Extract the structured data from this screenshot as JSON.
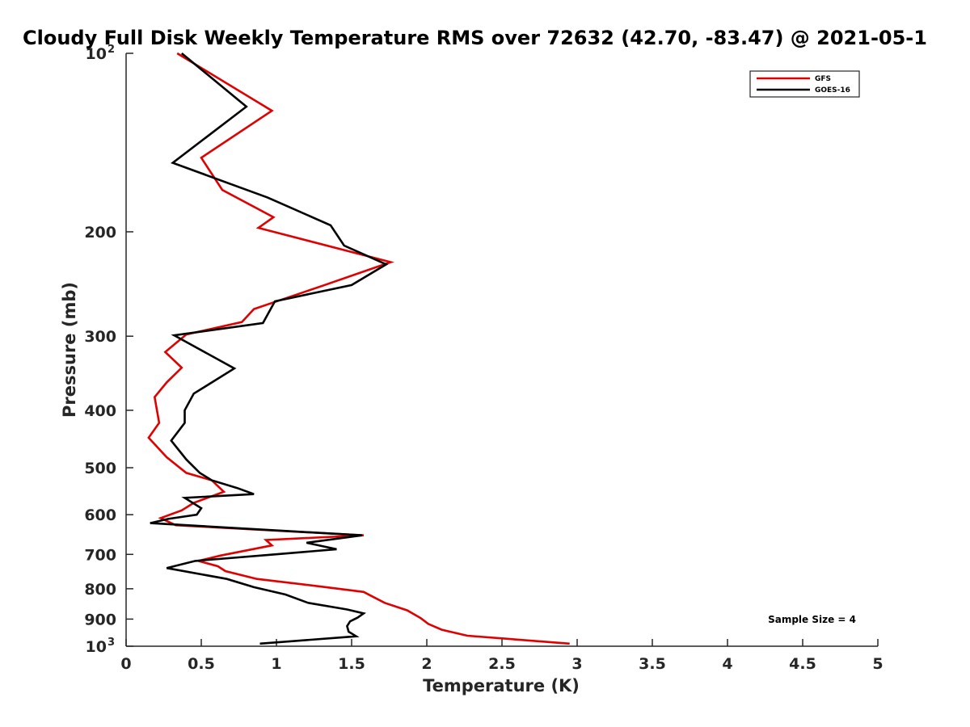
{
  "chart_data": {
    "type": "line",
    "title": "Cloudy Full Disk Weekly Temperature RMS over 72632 (42.70, -83.47) @ 2021-05-1",
    "xlabel": "Temperature (K)",
    "ylabel": "Pressure (mb)",
    "xlim": [
      0,
      5
    ],
    "ylim": [
      100,
      1000
    ],
    "y_scale": "log",
    "y_reversed": true,
    "grid": false,
    "legend_position": "top-right",
    "x_ticks": [
      {
        "value": 0,
        "label": "0"
      },
      {
        "value": 0.5,
        "label": "0.5"
      },
      {
        "value": 1,
        "label": "1"
      },
      {
        "value": 1.5,
        "label": "1.5"
      },
      {
        "value": 2,
        "label": "2"
      },
      {
        "value": 2.5,
        "label": "2.5"
      },
      {
        "value": 3,
        "label": "3"
      },
      {
        "value": 3.5,
        "label": "3.5"
      },
      {
        "value": 4,
        "label": "4"
      },
      {
        "value": 4.5,
        "label": "4.5"
      },
      {
        "value": 5,
        "label": "5"
      }
    ],
    "y_ticks": [
      {
        "value": 100,
        "label": "10",
        "sup": "2"
      },
      {
        "value": 200,
        "label": "200"
      },
      {
        "value": 300,
        "label": "300"
      },
      {
        "value": 400,
        "label": "400"
      },
      {
        "value": 500,
        "label": "500"
      },
      {
        "value": 600,
        "label": "600"
      },
      {
        "value": 700,
        "label": "700"
      },
      {
        "value": 800,
        "label": "800"
      },
      {
        "value": 900,
        "label": "900"
      },
      {
        "value": 1000,
        "label": "10",
        "sup": "3"
      }
    ],
    "series": [
      {
        "name": "GFS",
        "color": "#e00000",
        "points": [
          [
            0.34,
            100
          ],
          [
            0.97,
            125
          ],
          [
            0.5,
            150
          ],
          [
            0.64,
            170
          ],
          [
            0.98,
            189
          ],
          [
            0.88,
            197
          ],
          [
            1.76,
            225
          ],
          [
            1.3,
            247
          ],
          [
            0.85,
            270
          ],
          [
            0.77,
            284
          ],
          [
            0.4,
            298
          ],
          [
            0.26,
            319
          ],
          [
            0.37,
            339
          ],
          [
            0.27,
            359
          ],
          [
            0.19,
            380
          ],
          [
            0.22,
            420
          ],
          [
            0.15,
            445
          ],
          [
            0.27,
            480
          ],
          [
            0.4,
            510
          ],
          [
            0.57,
            525
          ],
          [
            0.65,
            549
          ],
          [
            0.45,
            573
          ],
          [
            0.37,
            590
          ],
          [
            0.23,
            608
          ],
          [
            0.33,
            625
          ],
          [
            1.58,
            650
          ],
          [
            0.93,
            662
          ],
          [
            0.97,
            676
          ],
          [
            0.63,
            703
          ],
          [
            0.48,
            718
          ],
          [
            0.61,
            733
          ],
          [
            0.66,
            747
          ],
          [
            0.87,
            770
          ],
          [
            1.33,
            795
          ],
          [
            1.58,
            810
          ],
          [
            1.62,
            820
          ],
          [
            1.72,
            845
          ],
          [
            1.87,
            870
          ],
          [
            1.96,
            897
          ],
          [
            2.01,
            917
          ],
          [
            2.1,
            938
          ],
          [
            2.27,
            960
          ],
          [
            2.95,
            990
          ]
        ]
      },
      {
        "name": "GOES-16",
        "color": "#000000",
        "points": [
          [
            0.37,
            100
          ],
          [
            0.8,
            123
          ],
          [
            0.31,
            153
          ],
          [
            0.94,
            175
          ],
          [
            1.36,
            195
          ],
          [
            1.45,
            211
          ],
          [
            1.73,
            227
          ],
          [
            1.5,
            246
          ],
          [
            0.99,
            262
          ],
          [
            0.91,
            285
          ],
          [
            0.32,
            299
          ],
          [
            0.72,
            340
          ],
          [
            0.45,
            375
          ],
          [
            0.39,
            400
          ],
          [
            0.39,
            420
          ],
          [
            0.3,
            450
          ],
          [
            0.4,
            484
          ],
          [
            0.49,
            510
          ],
          [
            0.57,
            525
          ],
          [
            0.74,
            541
          ],
          [
            0.85,
            554
          ],
          [
            0.39,
            562
          ],
          [
            0.5,
            585
          ],
          [
            0.47,
            600
          ],
          [
            0.28,
            610
          ],
          [
            0.16,
            620
          ],
          [
            1.57,
            650
          ],
          [
            1.2,
            669
          ],
          [
            1.4,
            686
          ],
          [
            0.99,
            700
          ],
          [
            0.46,
            718
          ],
          [
            0.27,
            738
          ],
          [
            0.67,
            770
          ],
          [
            0.85,
            795
          ],
          [
            1.06,
            818
          ],
          [
            1.21,
            845
          ],
          [
            1.47,
            867
          ],
          [
            1.58,
            880
          ],
          [
            1.54,
            895
          ],
          [
            1.49,
            908
          ],
          [
            1.47,
            925
          ],
          [
            1.48,
            945
          ],
          [
            1.53,
            962
          ],
          [
            0.89,
            990
          ]
        ]
      }
    ],
    "annotation": "Sample Size = 4"
  }
}
